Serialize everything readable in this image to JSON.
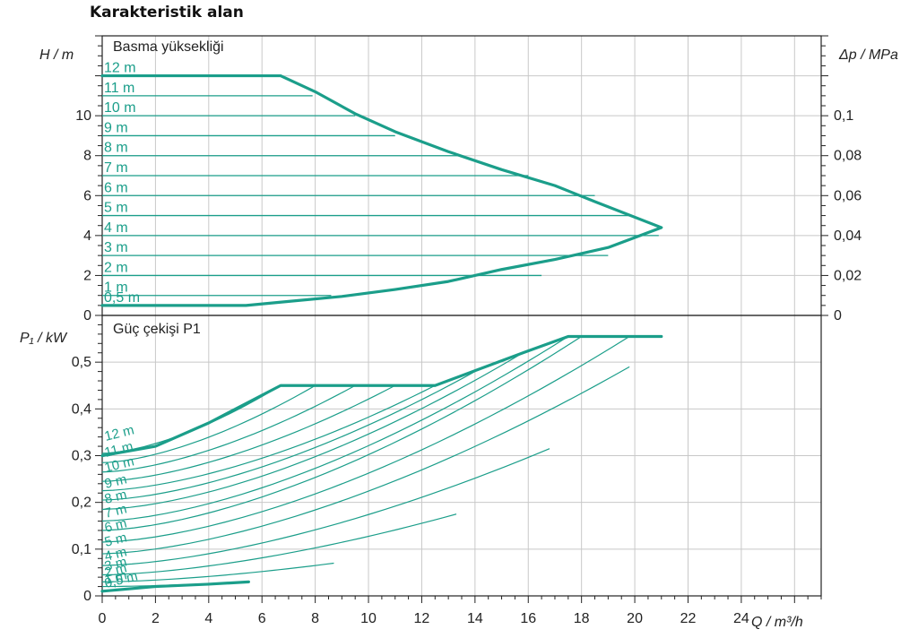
{
  "title": "Karakteristik alan",
  "colors": {
    "curve": "#1b9e8a",
    "grid": "#c8c8c8",
    "axis": "#222222"
  },
  "chart_data": [
    {
      "type": "line",
      "title": "Basma yüksekliği",
      "xlabel": "Q / m³/h",
      "ylabel_left": "H / m",
      "ylabel_right": "Δp / MPa",
      "xlim": [
        0,
        27
      ],
      "ylim": [
        0,
        14
      ],
      "grid": true,
      "x_ticks": [
        0,
        2,
        4,
        6,
        8,
        10,
        12,
        14,
        16,
        18,
        20,
        22,
        24
      ],
      "y_ticks": [
        0,
        2,
        4,
        6,
        8,
        10
      ],
      "right_ticks": [
        {
          "h": 0,
          "label": "0"
        },
        {
          "h": 2,
          "label": "0,02"
        },
        {
          "h": 4,
          "label": "0,04"
        },
        {
          "h": 6,
          "label": "0,06"
        },
        {
          "h": 8,
          "label": "0,08"
        },
        {
          "h": 10,
          "label": "0,1"
        }
      ],
      "envelope": [
        [
          0,
          12
        ],
        [
          6.7,
          12
        ],
        [
          8,
          11.2
        ],
        [
          9.5,
          10.1
        ],
        [
          11,
          9.2
        ],
        [
          13,
          8.2
        ],
        [
          15,
          7.3
        ],
        [
          17,
          6.5
        ],
        [
          18.5,
          5.7
        ],
        [
          21,
          4.4
        ],
        [
          19,
          3.4
        ],
        [
          17,
          2.8
        ],
        [
          15,
          2.3
        ],
        [
          13,
          1.7
        ],
        [
          11,
          1.3
        ],
        [
          9,
          0.95
        ],
        [
          7,
          0.7
        ],
        [
          5.4,
          0.5
        ],
        [
          0,
          0.5
        ]
      ],
      "series": [
        {
          "name": "12 m",
          "h": 12,
          "x_end": 6.7
        },
        {
          "name": "11 m",
          "h": 11,
          "x_end": 7.9
        },
        {
          "name": "10 m",
          "h": 10,
          "x_end": 9.5
        },
        {
          "name": "9 m",
          "h": 9,
          "x_end": 11
        },
        {
          "name": "8 m",
          "h": 8,
          "x_end": 13.5
        },
        {
          "name": "7 m",
          "h": 7,
          "x_end": 16
        },
        {
          "name": "6 m",
          "h": 6,
          "x_end": 18.5
        },
        {
          "name": "5 m",
          "h": 5,
          "x_end": 19.8
        },
        {
          "name": "4 m",
          "h": 4,
          "x_end": 20.9
        },
        {
          "name": "3 m",
          "h": 3,
          "x_end": 19
        },
        {
          "name": "2 m",
          "h": 2,
          "x_end": 16.5
        },
        {
          "name": "1 m",
          "h": 1,
          "x_end": 8.6
        },
        {
          "name": "0,5 m",
          "h": 0.5,
          "x_end": 5.4
        }
      ]
    },
    {
      "type": "line",
      "title": "Güç çekişi P1",
      "xlabel": "Q / m³/h",
      "ylabel_left": "P₁ / kW",
      "xlim": [
        0,
        27
      ],
      "ylim": [
        0,
        0.6
      ],
      "grid": true,
      "y_ticks": [
        0,
        0.1,
        0.2,
        0.3,
        0.4,
        0.5
      ],
      "y_tick_labels": [
        "0",
        "0,1",
        "0,2",
        "0,3",
        "0,4",
        "0,5"
      ],
      "envelope": [
        [
          0,
          0.3
        ],
        [
          2,
          0.32
        ],
        [
          4,
          0.37
        ],
        [
          6.7,
          0.45
        ],
        [
          12.5,
          0.45
        ],
        [
          15.8,
          0.52
        ],
        [
          17.5,
          0.555
        ],
        [
          21,
          0.555
        ]
      ],
      "envelope_low": [
        [
          0,
          0.01
        ],
        [
          2,
          0.02
        ],
        [
          4,
          0.025
        ],
        [
          5.5,
          0.03
        ]
      ],
      "series": [
        {
          "name": "12 m",
          "p0": 0.305,
          "x_end": 6.7,
          "p_end": 0.45
        },
        {
          "name": "11 m",
          "p0": 0.285,
          "x_end": 8,
          "p_end": 0.45
        },
        {
          "name": "10 m",
          "p0": 0.265,
          "x_end": 9.5,
          "p_end": 0.45
        },
        {
          "name": "9 m",
          "p0": 0.245,
          "x_end": 11,
          "p_end": 0.45
        },
        {
          "name": "8 m",
          "p0": 0.225,
          "x_end": 12.5,
          "p_end": 0.45
        },
        {
          "name": "7 m",
          "p0": 0.205,
          "x_end": 14,
          "p_end": 0.48
        },
        {
          "name": "6 m",
          "p0": 0.185,
          "x_end": 15.8,
          "p_end": 0.52
        },
        {
          "name": "5 m",
          "p0": 0.16,
          "x_end": 17.5,
          "p_end": 0.555
        },
        {
          "name": "4 m",
          "p0": 0.14,
          "x_end": 18,
          "p_end": 0.555
        },
        {
          "name": "3 m",
          "p0": 0.115,
          "x_end": 19.8,
          "p_end": 0.555
        },
        {
          "name": "2 m",
          "p0": 0.09,
          "x_end": 19.8,
          "p_end": 0.49
        },
        {
          "name": "1 m",
          "p0": 0.065,
          "x_end": 16.8,
          "p_end": 0.315
        },
        {
          "name": "1 m",
          "p0": 0.045,
          "x_end": 13.3,
          "p_end": 0.175
        },
        {
          "name": "1 m",
          "p0": 0.03,
          "x_end": 8.7,
          "p_end": 0.07
        },
        {
          "name": "0,5 m",
          "p0": 0.02,
          "x_end": 5.5,
          "p_end": 0.03
        }
      ]
    }
  ]
}
